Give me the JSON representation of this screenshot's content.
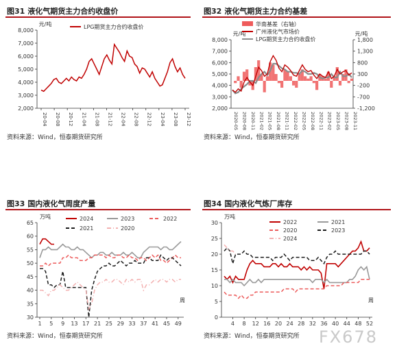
{
  "panels": [
    {
      "id": "p1",
      "fig_no": "图31",
      "title": "液化气期货主力合约收盘价",
      "source": "资料来源：Wind，恒泰期货研究所"
    },
    {
      "id": "p2",
      "fig_no": "图32",
      "title": "液化气期货主力合约基差",
      "source": "资料来源：Wind，恒泰期货研究所"
    },
    {
      "id": "p3",
      "fig_no": "图33",
      "title": "国内液化气周度产量",
      "source": "资料来源：Wind，恒泰期货研究所"
    },
    {
      "id": "p4",
      "fig_no": "图34",
      "title": "国内液化气炼厂库存",
      "source": "资料来源：Wind，恒泰期货研究所"
    }
  ],
  "watermark": "FX678",
  "chart_data": [
    {
      "type": "line",
      "ylabel": "元/吨",
      "ylim": [
        2000,
        8000
      ],
      "yticks": [
        "2,000",
        "3,000",
        "4,000",
        "5,000",
        "6,000",
        "7,000",
        "8,000"
      ],
      "x_ticks": [
        "20-04",
        "20-08",
        "20-12",
        "21-04",
        "21-08",
        "21-12",
        "22-04",
        "22-08",
        "22-12",
        "23-04",
        "23-08",
        "23-12"
      ],
      "grid": false,
      "legend_position": "top",
      "series": [
        {
          "name": "LPG期货主力合约收盘价",
          "color": "#c00000",
          "values": [
            3400,
            3300,
            3500,
            3700,
            3900,
            4200,
            4300,
            4000,
            3900,
            4100,
            4300,
            4100,
            4400,
            4200,
            4100,
            4400,
            4300,
            4600,
            5000,
            5600,
            5800,
            5400,
            5000,
            4600,
            5200,
            5800,
            6100,
            5700,
            5400,
            6900,
            6600,
            6300,
            5900,
            5600,
            6400,
            6000,
            5900,
            5400,
            5200,
            4700,
            5100,
            5000,
            4700,
            4400,
            4800,
            4300,
            4000,
            3700,
            3800,
            4300,
            4800,
            5500,
            5800,
            5200,
            4800,
            5100,
            4600,
            4300
          ]
        }
      ]
    },
    {
      "type": "line",
      "ylabel": "元/吨",
      "ylabel_right": "元/吨",
      "ylim": [
        2000,
        8000
      ],
      "ylim_right": [
        -1200,
        1800
      ],
      "yticks": [
        "2,000",
        "3,000",
        "4,000",
        "5,000",
        "6,000",
        "7,000",
        "8,000"
      ],
      "yticks_right": [
        "-1,200",
        "-700",
        "-200",
        "300",
        "800",
        "1,300",
        "1,800"
      ],
      "x_ticks": [
        "2020-05",
        "2020-08",
        "2020-11",
        "2021-02",
        "2021-05",
        "2021-08",
        "2021-11",
        "2022-02",
        "2022-05",
        "2022-08",
        "2022-11",
        "2023-02",
        "2023-05",
        "2023-08",
        "2023-11"
      ],
      "legend_position": "top",
      "series": [
        {
          "name": "华南基差（右轴）",
          "color": "#ef5b5b",
          "kind": "area",
          "axis": "right",
          "values": [
            0,
            -100,
            200,
            -300,
            400,
            500,
            -200,
            -400,
            600,
            900,
            300,
            -500,
            200,
            800,
            700,
            300,
            -100,
            -300,
            500,
            400,
            200,
            -200,
            -300,
            300,
            500,
            200,
            100,
            200,
            -100,
            -400,
            300,
            200,
            100,
            400,
            -300,
            200,
            600,
            -200,
            300,
            500,
            -100,
            100
          ]
        },
        {
          "name": "广州液化气市场价",
          "color": "#c00000",
          "axis": "left",
          "values": [
            3600,
            3400,
            3700,
            3500,
            4300,
            4700,
            4300,
            4000,
            4800,
            5600,
            5300,
            4800,
            5000,
            6100,
            6600,
            6200,
            5500,
            5200,
            5800,
            5600,
            5300,
            4900,
            4800,
            5300,
            5800,
            5400,
            5200,
            5300,
            4900,
            4600,
            5000,
            4800,
            4700,
            5200,
            4600,
            4800,
            5400,
            5000,
            5200,
            5300,
            4900,
            5100
          ]
        },
        {
          "name": "LPG期货主力合约收盘价",
          "color": "#8c8c8c",
          "axis": "left",
          "values": [
            3600,
            3300,
            3400,
            3700,
            3900,
            4100,
            4400,
            4400,
            4200,
            4700,
            5000,
            5200,
            4900,
            5300,
            5900,
            5900,
            5700,
            5500,
            5400,
            5200,
            5200,
            5100,
            5100,
            5000,
            5300,
            5200,
            5000,
            5000,
            5100,
            5000,
            4700,
            4600,
            4700,
            4700,
            5000,
            4700,
            4700,
            5200,
            4800,
            4800,
            5000,
            4700
          ]
        }
      ]
    },
    {
      "type": "line",
      "ylabel": "万吨",
      "xlabel": "周",
      "ylim": [
        30,
        65
      ],
      "yticks": [
        "30",
        "35",
        "40",
        "45",
        "50",
        "55",
        "60",
        "65"
      ],
      "x_ticks": [
        "1",
        "5",
        "9",
        "13",
        "17",
        "21",
        "25",
        "29",
        "33",
        "37",
        "41",
        "45",
        "49"
      ],
      "legend_position": "top",
      "series": [
        {
          "name": "2024",
          "color": "#c00000",
          "style": "solid",
          "values": [
            57,
            59,
            59,
            58,
            57,
            57
          ]
        },
        {
          "name": "2023",
          "color": "#999999",
          "style": "solid",
          "values": [
            52,
            55,
            55,
            56,
            55,
            55,
            55,
            56,
            57,
            56,
            56,
            55,
            55,
            56,
            55,
            55,
            54,
            53,
            52,
            53,
            53,
            54,
            54,
            53,
            53,
            54,
            53,
            53,
            53,
            54,
            53,
            53,
            54,
            53,
            52,
            52,
            54,
            55,
            56,
            56,
            56,
            56,
            55,
            56,
            56,
            55,
            55,
            56,
            57,
            58
          ]
        },
        {
          "name": "2022",
          "color": "#ec5a5a",
          "style": "dash",
          "values": [
            49,
            49,
            50,
            49,
            50,
            50,
            50,
            50,
            52,
            52,
            53,
            52,
            52,
            52,
            51,
            51,
            51,
            52,
            52,
            53,
            53,
            53,
            53,
            52,
            53,
            52,
            52,
            53,
            53,
            52,
            52,
            53,
            52,
            52,
            51,
            52,
            52,
            51,
            52,
            53,
            52,
            53,
            51,
            51,
            50,
            51,
            52,
            53,
            52,
            52
          ]
        },
        {
          "name": "2021",
          "color": "#1a1a1a",
          "style": "dash",
          "values": [
            48,
            48,
            47,
            42,
            42,
            41,
            42,
            42,
            47,
            41,
            41,
            41,
            41,
            41,
            41,
            41,
            41,
            30,
            40,
            44,
            47,
            48,
            49,
            49,
            50,
            49,
            49,
            50,
            51,
            50,
            49,
            50,
            50,
            51,
            50,
            50,
            50,
            52,
            52,
            51,
            51,
            51,
            53,
            52,
            51,
            52,
            52,
            51,
            50,
            49
          ]
        },
        {
          "name": "2020",
          "color": "#f3b0b0",
          "style": "dashdot",
          "values": [
            40,
            40,
            39,
            38,
            40,
            40,
            41,
            42,
            41,
            40,
            40,
            41,
            42,
            43,
            42,
            41,
            40,
            33,
            35,
            40,
            42,
            43,
            43,
            44,
            43,
            43,
            44,
            44,
            43,
            42,
            44,
            43,
            44,
            43,
            44,
            44,
            40,
            42,
            42,
            43,
            44,
            43,
            44,
            44,
            43,
            44,
            44,
            43,
            44,
            44
          ]
        }
      ]
    },
    {
      "type": "line",
      "ylabel": "万吨",
      "xlabel": "周",
      "ylim": [
        0,
        30
      ],
      "yticks": [
        "0",
        "5",
        "10",
        "15",
        "20",
        "25",
        "30"
      ],
      "x_ticks": [
        "4",
        "8",
        "12",
        "16",
        "20",
        "24",
        "28",
        "32",
        "36",
        "40",
        "44",
        "48",
        "52"
      ],
      "legend_position": "top",
      "series": [
        {
          "name": "2022",
          "color": "#c00000",
          "style": "solid",
          "values": [
            13,
            12,
            13,
            11,
            13,
            12,
            12,
            12,
            15,
            17,
            18,
            17,
            17,
            17,
            16,
            16,
            16,
            17,
            17,
            16,
            17,
            16,
            16,
            17,
            16,
            16,
            16,
            15,
            16,
            15,
            16,
            15,
            15,
            15,
            14,
            9,
            17,
            17,
            17,
            17,
            16,
            17,
            18,
            19,
            20,
            21,
            21,
            22,
            24,
            21,
            21,
            22
          ]
        },
        {
          "name": "2021",
          "color": "#999999",
          "style": "solid",
          "values": [
            12,
            12,
            11,
            12,
            11,
            11,
            11,
            10,
            11,
            12,
            11,
            11,
            12,
            11,
            12,
            12,
            12,
            12,
            12,
            12,
            12,
            12,
            12,
            12,
            12,
            12,
            12,
            12,
            12,
            12,
            12,
            11,
            12,
            12,
            12,
            11,
            12,
            11,
            11,
            11,
            11,
            11,
            11,
            11,
            12,
            12,
            13,
            15,
            16,
            15,
            16,
            12
          ]
        },
        {
          "name": "2020",
          "color": "#ec5a5a",
          "style": "dash",
          "values": [
            8,
            7,
            7,
            7,
            7,
            6,
            7,
            6,
            6,
            7,
            7,
            8,
            8,
            8,
            8,
            8,
            8,
            8,
            8,
            8,
            8,
            9,
            9,
            9,
            9,
            8,
            9,
            9,
            9,
            9,
            9,
            9,
            9,
            9,
            9,
            9,
            10,
            10,
            10,
            10,
            10,
            10,
            11,
            11,
            11,
            11,
            11,
            11,
            12,
            12,
            12,
            12
          ]
        },
        {
          "name": "2023",
          "color": "#1a1a1a",
          "style": "dash",
          "values": [
            21,
            22,
            21,
            17,
            20,
            20,
            20,
            21,
            20,
            20,
            19,
            19,
            19,
            19,
            19,
            19,
            19,
            18,
            19,
            19,
            19,
            20,
            19,
            18,
            19,
            19,
            19,
            19,
            19,
            19,
            18,
            18,
            18,
            19,
            18,
            17,
            19,
            20,
            20,
            21,
            20,
            20,
            20,
            20,
            20,
            20,
            20,
            20,
            20,
            21,
            21,
            20
          ]
        },
        {
          "name": "2024",
          "color": "#f3b0b0",
          "style": "dashdot",
          "values": [
            23,
            22,
            21,
            21,
            20
          ]
        }
      ]
    }
  ]
}
